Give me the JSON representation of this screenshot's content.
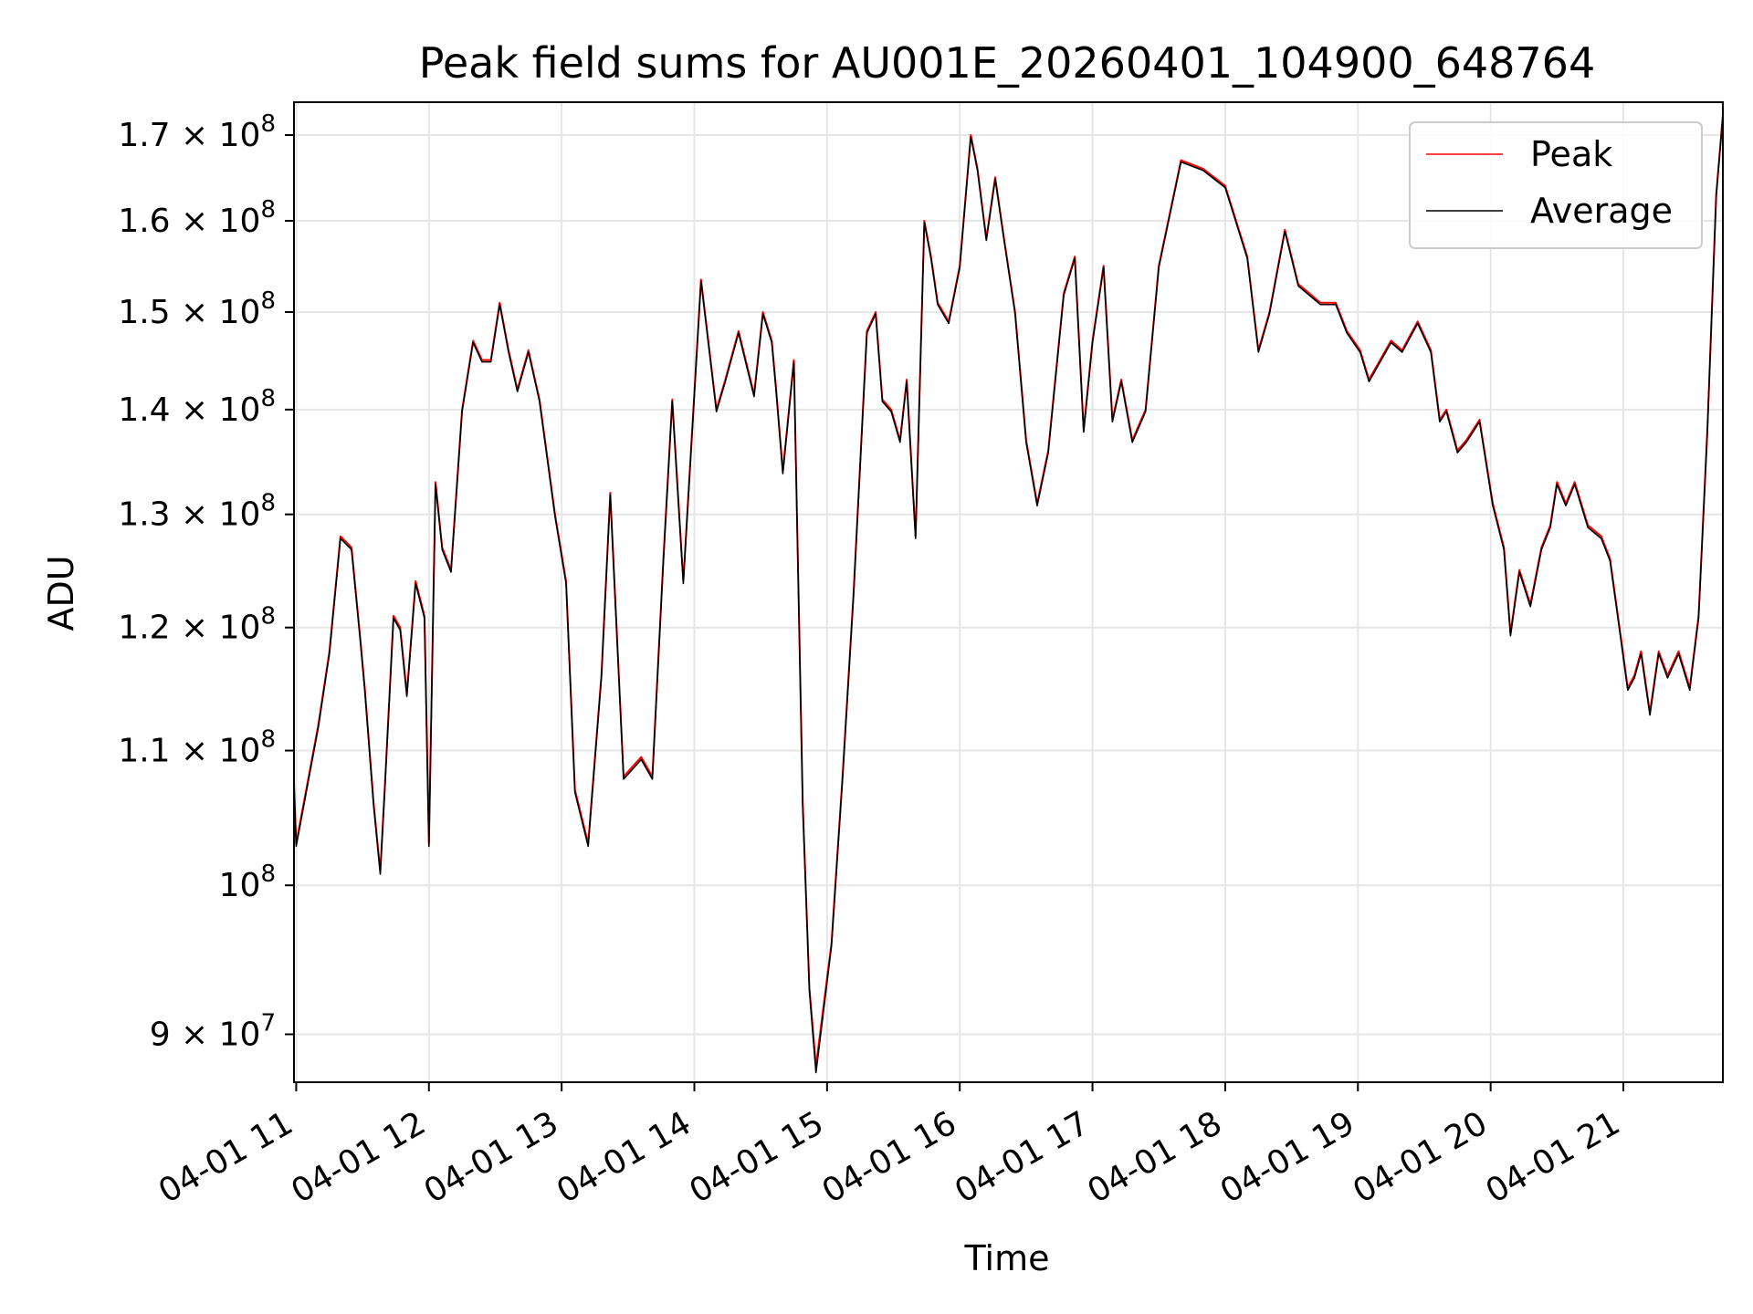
{
  "chart_data": {
    "type": "line",
    "title": "Peak field sums for AU001E_20260401_104900_648764",
    "xlabel": "Time",
    "ylabel": "ADU",
    "y_scale": "log",
    "ylim": [
      87000000,
      174000000
    ],
    "xlim": [
      "2026-04-01 10:59",
      "2026-04-01 21:45"
    ],
    "grid": true,
    "legend_position": "top-right",
    "x_tick_labels": [
      "04-01 11",
      "04-01 12",
      "04-01 13",
      "04-01 14",
      "04-01 15",
      "04-01 16",
      "04-01 17",
      "04-01 18",
      "04-01 19",
      "04-01 20",
      "04-01 21"
    ],
    "x_tick_values": [
      "2026-04-01 11:00",
      "2026-04-01 12:00",
      "2026-04-01 13:00",
      "2026-04-01 14:00",
      "2026-04-01 15:00",
      "2026-04-01 16:00",
      "2026-04-01 17:00",
      "2026-04-01 18:00",
      "2026-04-01 19:00",
      "2026-04-01 20:00",
      "2026-04-01 21:00"
    ],
    "y_ticks": [
      {
        "value": 90000000,
        "mantissa": "9",
        "exponent": "7"
      },
      {
        "value": 100000000,
        "mantissa": "",
        "exponent": "8"
      },
      {
        "value": 110000000,
        "mantissa": "1.1",
        "exponent": "8"
      },
      {
        "value": 120000000,
        "mantissa": "1.2",
        "exponent": "8"
      },
      {
        "value": 130000000,
        "mantissa": "1.3",
        "exponent": "8"
      },
      {
        "value": 140000000,
        "mantissa": "1.4",
        "exponent": "8"
      },
      {
        "value": 150000000,
        "mantissa": "1.5",
        "exponent": "8"
      },
      {
        "value": 160000000,
        "mantissa": "1.6",
        "exponent": "8"
      },
      {
        "value": 170000000,
        "mantissa": "1.7",
        "exponent": "8"
      }
    ],
    "times": [
      "2026-04-01 10:59",
      "2026-04-01 11:00",
      "2026-04-01 11:10",
      "2026-04-01 11:15",
      "2026-04-01 11:20",
      "2026-04-01 11:25",
      "2026-04-01 11:29",
      "2026-04-01 11:31",
      "2026-04-01 11:35",
      "2026-04-01 11:38",
      "2026-04-01 11:40",
      "2026-04-01 11:44",
      "2026-04-01 11:47",
      "2026-04-01 11:50",
      "2026-04-01 11:54",
      "2026-04-01 11:58",
      "2026-04-01 12:00",
      "2026-04-01 12:03",
      "2026-04-01 12:06",
      "2026-04-01 12:10",
      "2026-04-01 12:15",
      "2026-04-01 12:20",
      "2026-04-01 12:24",
      "2026-04-01 12:28",
      "2026-04-01 12:32",
      "2026-04-01 12:36",
      "2026-04-01 12:40",
      "2026-04-01 12:45",
      "2026-04-01 12:50",
      "2026-04-01 12:57",
      "2026-04-01 13:02",
      "2026-04-01 13:06",
      "2026-04-01 13:12",
      "2026-04-01 13:18",
      "2026-04-01 13:22",
      "2026-04-01 13:28",
      "2026-04-01 13:36",
      "2026-04-01 13:41",
      "2026-04-01 13:46",
      "2026-04-01 13:50",
      "2026-04-01 13:55",
      "2026-04-01 14:03",
      "2026-04-01 14:10",
      "2026-04-01 14:14",
      "2026-04-01 14:20",
      "2026-04-01 14:27",
      "2026-04-01 14:31",
      "2026-04-01 14:35",
      "2026-04-01 14:37",
      "2026-04-01 14:40",
      "2026-04-01 14:45",
      "2026-04-01 14:49",
      "2026-04-01 14:52",
      "2026-04-01 14:55",
      "2026-04-01 15:02",
      "2026-04-01 15:07",
      "2026-04-01 15:12",
      "2026-04-01 15:18",
      "2026-04-01 15:22",
      "2026-04-01 15:25",
      "2026-04-01 15:29",
      "2026-04-01 15:33",
      "2026-04-01 15:36",
      "2026-04-01 15:40",
      "2026-04-01 15:44",
      "2026-04-01 15:47",
      "2026-04-01 15:50",
      "2026-04-01 15:55",
      "2026-04-01 16:00",
      "2026-04-01 16:05",
      "2026-04-01 16:08",
      "2026-04-01 16:12",
      "2026-04-01 16:16",
      "2026-04-01 16:20",
      "2026-04-01 16:25",
      "2026-04-01 16:30",
      "2026-04-01 16:35",
      "2026-04-01 16:40",
      "2026-04-01 16:47",
      "2026-04-01 16:52",
      "2026-04-01 16:56",
      "2026-04-01 17:00",
      "2026-04-01 17:05",
      "2026-04-01 17:09",
      "2026-04-01 17:13",
      "2026-04-01 17:18",
      "2026-04-01 17:24",
      "2026-04-01 17:30",
      "2026-04-01 17:40",
      "2026-04-01 17:50",
      "2026-04-01 18:00",
      "2026-04-01 18:10",
      "2026-04-01 18:15",
      "2026-04-01 18:20",
      "2026-04-01 18:27",
      "2026-04-01 18:33",
      "2026-04-01 18:38",
      "2026-04-01 18:43",
      "2026-04-01 18:50",
      "2026-04-01 18:55",
      "2026-04-01 19:01",
      "2026-04-01 19:05",
      "2026-04-01 19:15",
      "2026-04-01 19:20",
      "2026-04-01 19:27",
      "2026-04-01 19:33",
      "2026-04-01 19:37",
      "2026-04-01 19:40",
      "2026-04-01 19:45",
      "2026-04-01 19:49",
      "2026-04-01 19:55",
      "2026-04-01 20:01",
      "2026-04-01 20:06",
      "2026-04-01 20:09",
      "2026-04-01 20:13",
      "2026-04-01 20:18",
      "2026-04-01 20:23",
      "2026-04-01 20:27",
      "2026-04-01 20:30",
      "2026-04-01 20:34",
      "2026-04-01 20:38",
      "2026-04-01 20:44",
      "2026-04-01 20:50",
      "2026-04-01 20:54",
      "2026-04-01 20:59",
      "2026-04-01 21:02",
      "2026-04-01 21:05",
      "2026-04-01 21:08",
      "2026-04-01 21:12",
      "2026-04-01 21:16",
      "2026-04-01 21:20",
      "2026-04-01 21:25",
      "2026-04-01 21:30",
      "2026-04-01 21:34",
      "2026-04-01 21:38",
      "2026-04-01 21:42",
      "2026-04-01 21:45"
    ],
    "series": [
      {
        "name": "Peak",
        "color": "#ff0000",
        "values": [
          107500000,
          103000000,
          112000000,
          118000000,
          128000000,
          127000000,
          119000000,
          115000000,
          106000000,
          101000000,
          107000000,
          121000000,
          120000000,
          114500000,
          124000000,
          121000000,
          103000000,
          133000000,
          127000000,
          125000000,
          140000000,
          147000000,
          145000000,
          145000000,
          151000000,
          146000000,
          142000000,
          146000000,
          141000000,
          130000000,
          124000000,
          107000000,
          103000000,
          116000000,
          132000000,
          108000000,
          109500000,
          108000000,
          126000000,
          141000000,
          124000000,
          153500000,
          140000000,
          143000000,
          148000000,
          141500000,
          150000000,
          147000000,
          142000000,
          134000000,
          145000000,
          106000000,
          93000000,
          88000000,
          96000000,
          108000000,
          123000000,
          148000000,
          150000000,
          141000000,
          140000000,
          137000000,
          143000000,
          128000000,
          160000000,
          156000000,
          151000000,
          149000000,
          155000000,
          170000000,
          166000000,
          158000000,
          165000000,
          158000000,
          150000000,
          137000000,
          131000000,
          136000000,
          152000000,
          156000000,
          138000000,
          147000000,
          155000000,
          139000000,
          143000000,
          137000000,
          140000000,
          155000000,
          167000000,
          166000000,
          164000000,
          156000000,
          146000000,
          150000000,
          159000000,
          153000000,
          152000000,
          151000000,
          151000000,
          148000000,
          146000000,
          143000000,
          147000000,
          146000000,
          149000000,
          146000000,
          139000000,
          140000000,
          136000000,
          137000000,
          139000000,
          131000000,
          127000000,
          119500000,
          125000000,
          122000000,
          127000000,
          129000000,
          133000000,
          131000000,
          133000000,
          129000000,
          128000000,
          126000000,
          119000000,
          115000000,
          116000000,
          118000000,
          113000000,
          118000000,
          116000000,
          118000000,
          115000000,
          121000000,
          138000000,
          163000000,
          172500000
        ]
      },
      {
        "name": "Average",
        "color": "#000000",
        "values": [
          107300000,
          102800000,
          111800000,
          117800000,
          127800000,
          126800000,
          118800000,
          114800000,
          105800000,
          100800000,
          106800000,
          120800000,
          119800000,
          114300000,
          123800000,
          120800000,
          102800000,
          132800000,
          126800000,
          124800000,
          139800000,
          146800000,
          144800000,
          144800000,
          150800000,
          145800000,
          141800000,
          145800000,
          140800000,
          129800000,
          123800000,
          106800000,
          102800000,
          115800000,
          131800000,
          107800000,
          109300000,
          107800000,
          125800000,
          140800000,
          123800000,
          153300000,
          139800000,
          142800000,
          147800000,
          141300000,
          149800000,
          146800000,
          141800000,
          133800000,
          144800000,
          105800000,
          92800000,
          87600000,
          95800000,
          107800000,
          122800000,
          147800000,
          149800000,
          140800000,
          139800000,
          136800000,
          142800000,
          127800000,
          159800000,
          155800000,
          150800000,
          148800000,
          154800000,
          169800000,
          165800000,
          157800000,
          164800000,
          157800000,
          149800000,
          136800000,
          130800000,
          135800000,
          151800000,
          155800000,
          137800000,
          146800000,
          154800000,
          138800000,
          142800000,
          136800000,
          139800000,
          154800000,
          166800000,
          165800000,
          163800000,
          155800000,
          145800000,
          149800000,
          158800000,
          152800000,
          151800000,
          150800000,
          150800000,
          147800000,
          145800000,
          142800000,
          146800000,
          145800000,
          148800000,
          145800000,
          138800000,
          139800000,
          135800000,
          136800000,
          138800000,
          130800000,
          126800000,
          119300000,
          124800000,
          121800000,
          126800000,
          128800000,
          132800000,
          130800000,
          132800000,
          128800000,
          127800000,
          125800000,
          118800000,
          114800000,
          115800000,
          117800000,
          112800000,
          117800000,
          115800000,
          117800000,
          114800000,
          120800000,
          137800000,
          162800000,
          172300000
        ]
      }
    ]
  }
}
